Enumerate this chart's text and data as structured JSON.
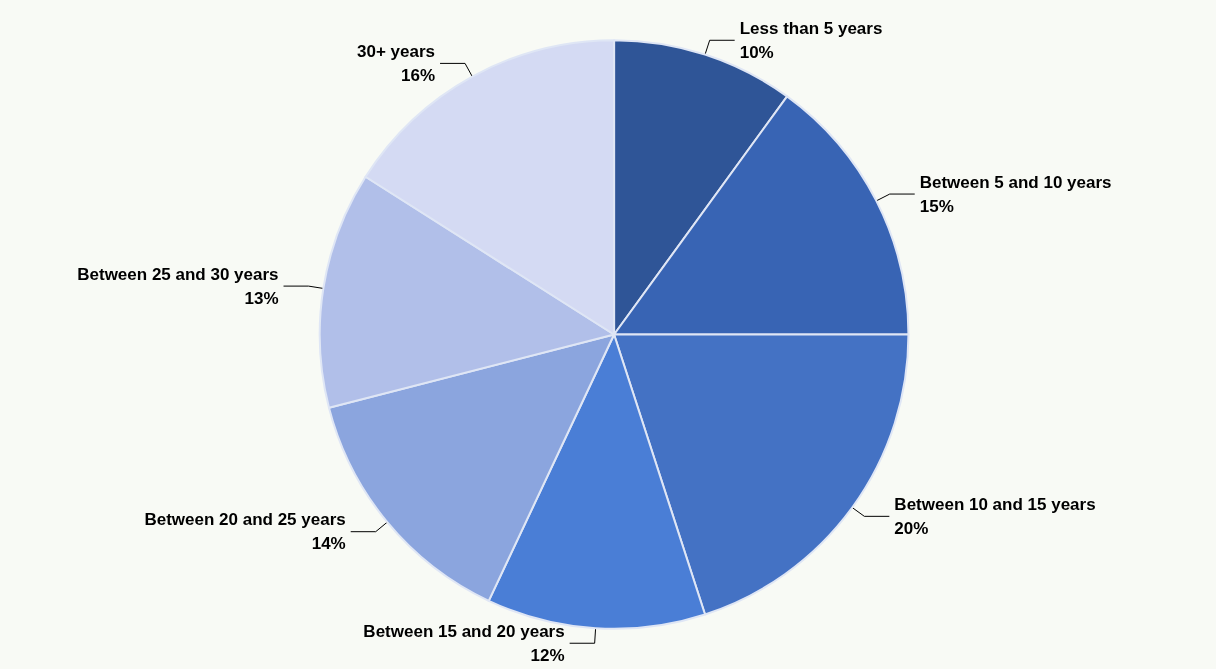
{
  "chart_data": {
    "type": "pie",
    "categories": [
      "Less than 5 years",
      "Between 5 and 10 years",
      "Between 10 and 15 years",
      "Between 15 and 20 years",
      "Between 20 and 25 years",
      "Between 25 and 30 years",
      "30+ years"
    ],
    "values": [
      10,
      15,
      20,
      12,
      14,
      13,
      16
    ],
    "colors": [
      "#2f5597",
      "#3864b4",
      "#4472c4",
      "#4a7ed6",
      "#8ba5de",
      "#b1bfe9",
      "#d4daf3"
    ],
    "value_labels": [
      "10%",
      "15%",
      "20%",
      "12%",
      "14%",
      "13%",
      "16%"
    ],
    "legend": false
  }
}
